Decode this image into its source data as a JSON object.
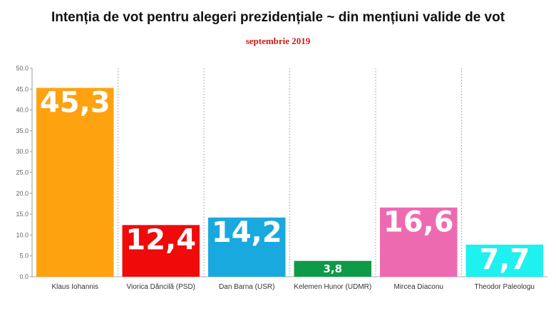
{
  "chart_data": {
    "type": "bar",
    "title": "Intenția de vot pentru alegeri prezidențiale ~ din mențiuni valide de vot",
    "subtitle": "septembrie 2019",
    "categories": [
      "Klaus Iohannis",
      "Viorica Dăncilă (PSD)",
      "Dan Barna (USR)",
      "Kelemen Hunor (UDMR)",
      "Mircea Diaconu",
      "Theodor Paleologu"
    ],
    "values": [
      45.3,
      12.4,
      14.2,
      3.8,
      16.6,
      7.7
    ],
    "value_labels": [
      "45,3",
      "12,4",
      "14,2",
      "3,8",
      "16,6",
      "7,7"
    ],
    "colors": [
      "#ffa20f",
      "#f00a0a",
      "#1aa9de",
      "#0e9a48",
      "#ee6ab0",
      "#1ff0f0"
    ],
    "xlabel": "",
    "ylabel": "",
    "ylim": [
      0,
      50
    ],
    "yticks": [
      "0.0",
      "5.0",
      "10.0",
      "15.0",
      "20.0",
      "25.0",
      "30.0",
      "35.0",
      "40.0",
      "45.0",
      "50.0"
    ],
    "grid": false,
    "category_separators": true
  }
}
